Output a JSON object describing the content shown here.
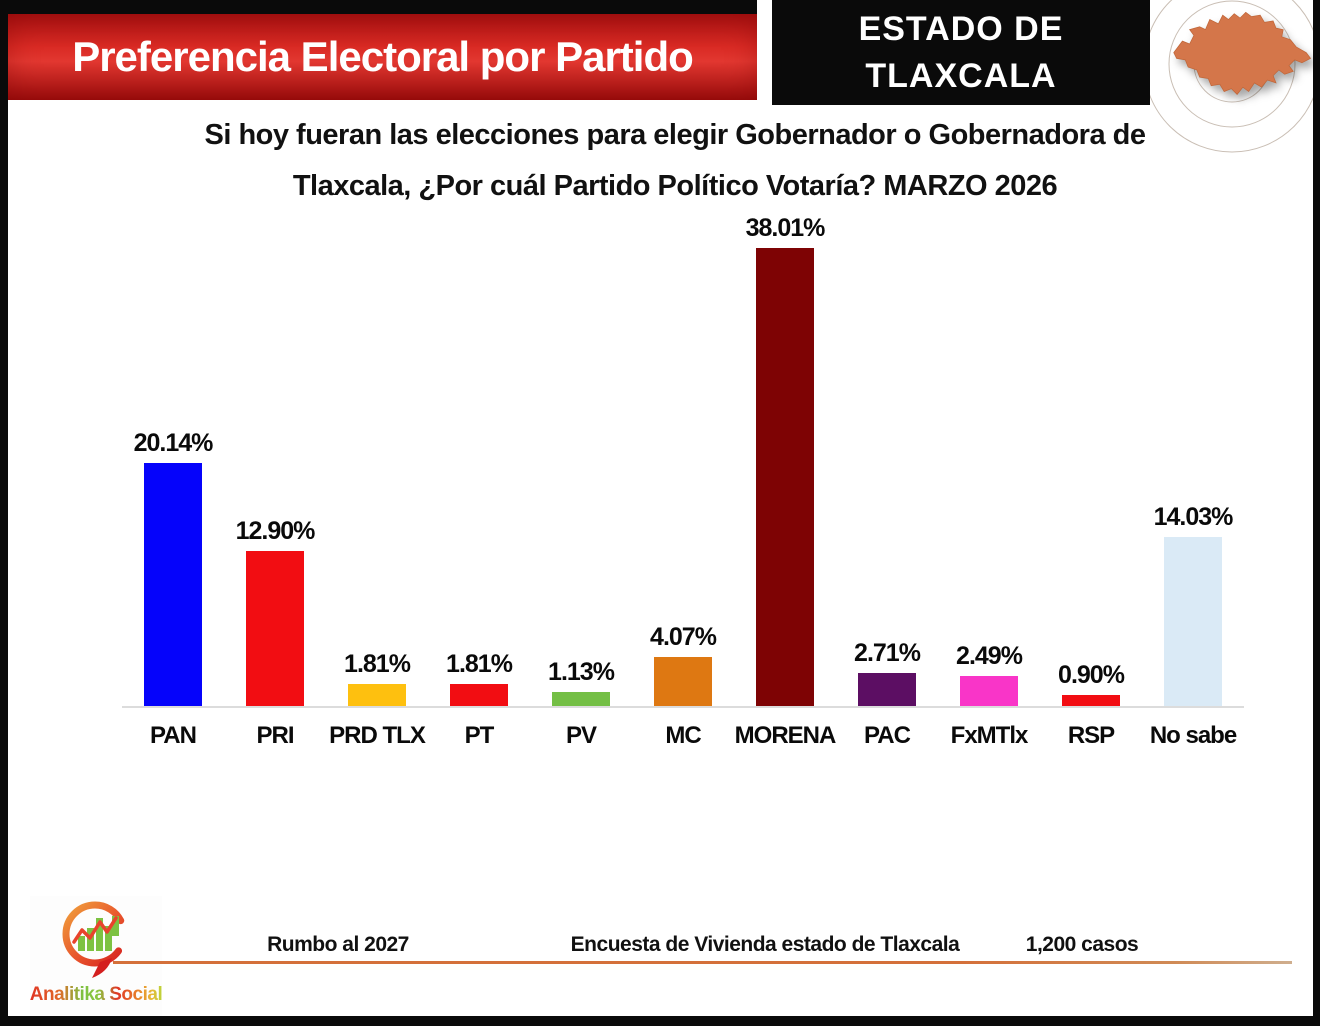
{
  "banner": {
    "title": "Preferencia Electoral por Partido",
    "bg_color": "#d92a24",
    "text_color": "#ffffff"
  },
  "state_box": {
    "line1": "ESTADO DE",
    "line2": "TLAXCALA",
    "bg_color": "#0a0a0a",
    "text_color": "#ffffff"
  },
  "map": {
    "name": "tlaxcala-state-silhouette",
    "fill_color": "#d4764a",
    "rings_color": "#c9beb4"
  },
  "question": {
    "line1": "Si hoy fueran las elecciones para elegir Gobernador o Gobernadora de",
    "line2": "Tlaxcala, ¿Por cuál Partido Político Votaría? MARZO 2026"
  },
  "chart_data": {
    "type": "bar",
    "title": "Preferencia Electoral por Partido — MARZO 2026",
    "categories": [
      "PAN",
      "PRI",
      "PRD TLX",
      "PT",
      "PV",
      "MC",
      "MORENA",
      "PAC",
      "FxMTlx",
      "RSP",
      "No sabe"
    ],
    "values": [
      20.14,
      12.9,
      1.81,
      1.81,
      1.13,
      4.07,
      38.01,
      2.71,
      2.49,
      0.9,
      14.03
    ],
    "value_labels": [
      "20.14%",
      "12.90%",
      "1.81%",
      "1.81%",
      "1.13%",
      "4.07%",
      "38.01%",
      "2.71%",
      "2.49%",
      "0.90%",
      "14.03%"
    ],
    "bar_colors": [
      "#0503fb",
      "#f20d12",
      "#fec00f",
      "#f20d12",
      "#74bf45",
      "#de7812",
      "#7e0304",
      "#5c0e63",
      "#f935c8",
      "#f20d12",
      "#daeaf6"
    ],
    "xlabel": "",
    "ylabel": "",
    "ylim": [
      0,
      40
    ],
    "grid": false,
    "legend": "none",
    "axis_line_color": "#dcdcdc"
  },
  "footer": {
    "brand": "Analitika Social",
    "logo": "analitika-social-logo",
    "items": [
      "Rumbo al 2027",
      "Encuesta de Vivienda estado de Tlaxcala",
      "1,200 casos"
    ],
    "rule_color": "#d4703a"
  }
}
